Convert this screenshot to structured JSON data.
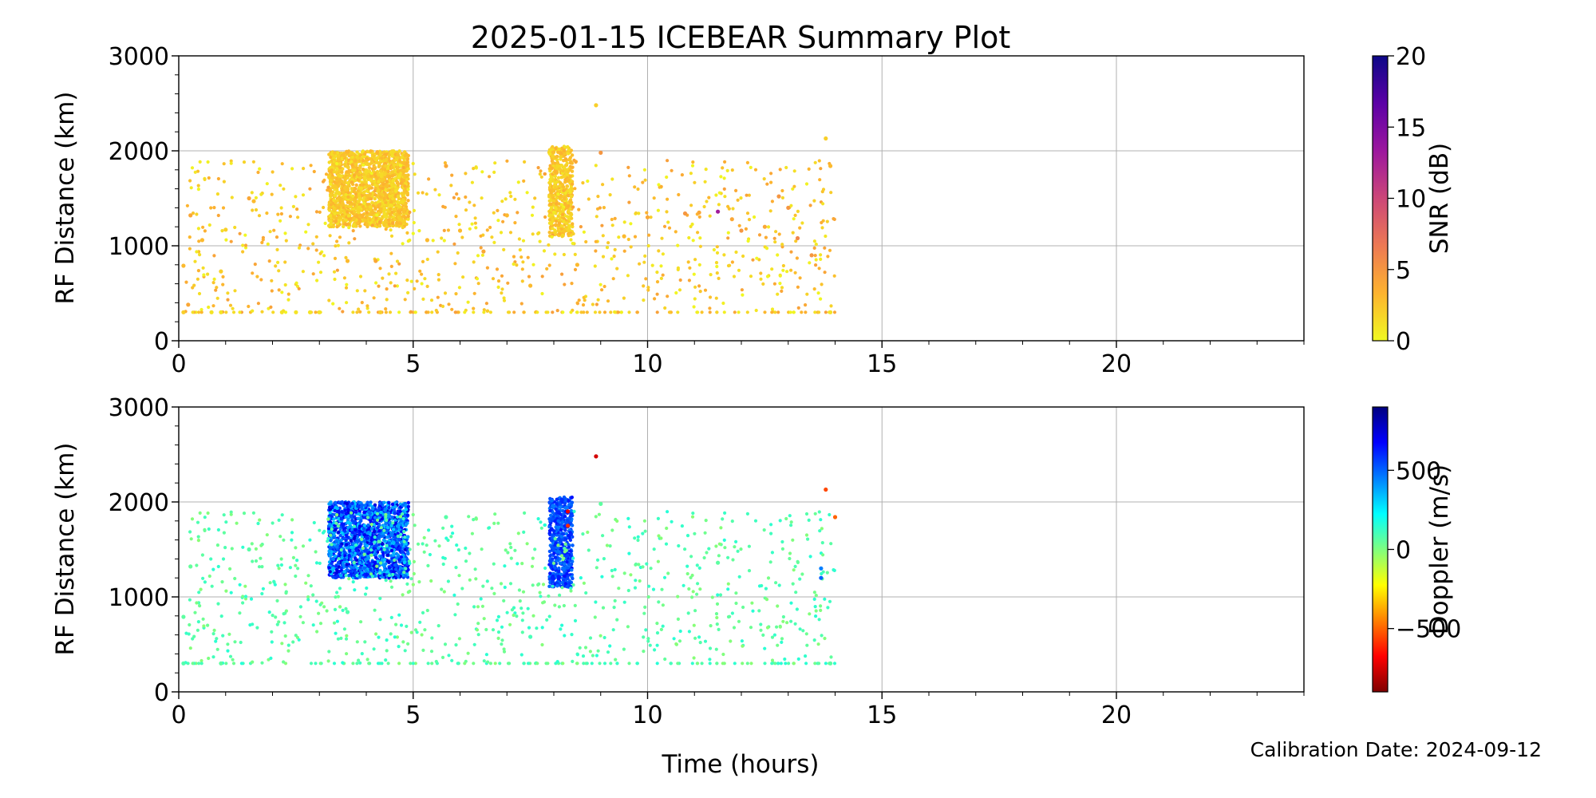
{
  "figure": {
    "title": "2025-01-15 ICEBEAR Summary Plot",
    "xlabel": "Time (hours)",
    "footnote": "Calibration Date: 2024-09-12"
  },
  "chart_data": [
    {
      "type": "scatter",
      "name": "snr-panel",
      "ylabel": "RF Distance (km)",
      "xlim": [
        0,
        24
      ],
      "ylim": [
        0,
        3000
      ],
      "xticks": [
        0,
        5,
        10,
        15,
        20
      ],
      "xtick_labels": [
        "0",
        "5",
        "10",
        "15",
        "20"
      ],
      "yticks": [
        0,
        1000,
        2000,
        3000
      ],
      "ytick_labels": [
        "0",
        "1000",
        "2000",
        "3000"
      ],
      "grid": true,
      "colorbar": {
        "label": "SNR (dB)",
        "range": [
          0,
          20
        ],
        "ticks": [
          0,
          5,
          10,
          15,
          20
        ],
        "tick_labels": [
          "0",
          "5",
          "10",
          "15",
          "20"
        ],
        "colormap": "plasma_r",
        "colors": [
          "#f0f921",
          "#fdb32f",
          "#ed7953",
          "#cc4778",
          "#9c179e",
          "#5c01a6",
          "#0d0887"
        ]
      },
      "clusters": [
        {
          "x": [
            3.2,
            4.9
          ],
          "y": [
            1200,
            2000
          ],
          "snr": [
            1.0,
            3.5
          ]
        },
        {
          "x": [
            7.9,
            8.4
          ],
          "y": [
            1100,
            2050
          ],
          "snr": [
            1.0,
            3.5
          ]
        }
      ],
      "points": [
        [
          0.1,
          300,
          2
        ],
        [
          0.1,
          790,
          3
        ],
        [
          0.2,
          380,
          4
        ],
        [
          0.25,
          1320,
          4
        ],
        [
          0.5,
          1060,
          3
        ],
        [
          0.7,
          300,
          1
        ],
        [
          0.9,
          300,
          1
        ],
        [
          0.9,
          730,
          2
        ],
        [
          1.0,
          1170,
          2
        ],
        [
          1.5,
          1500,
          4
        ],
        [
          1.6,
          1470,
          3
        ],
        [
          2.2,
          300,
          1
        ],
        [
          2.5,
          300,
          1
        ],
        [
          2.8,
          300,
          1
        ],
        [
          3.0,
          300,
          1
        ],
        [
          3.6,
          840,
          3
        ],
        [
          4.2,
          840,
          4
        ],
        [
          4.3,
          300,
          2
        ],
        [
          5.3,
          1060,
          3
        ],
        [
          5.7,
          1840,
          4
        ],
        [
          6.0,
          1160,
          3
        ],
        [
          6.5,
          940,
          4
        ],
        [
          7.0,
          1320,
          3
        ],
        [
          7.5,
          580,
          3
        ],
        [
          8.5,
          800,
          3
        ],
        [
          8.9,
          2480,
          2
        ],
        [
          9.0,
          1980,
          5
        ],
        [
          9.5,
          1100,
          3
        ],
        [
          10.0,
          1300,
          4
        ],
        [
          10.8,
          1340,
          5
        ],
        [
          11.1,
          1350,
          4
        ],
        [
          11.5,
          1360,
          13
        ],
        [
          11.8,
          1280,
          4
        ],
        [
          12.0,
          1160,
          5
        ],
        [
          12.5,
          1200,
          4
        ],
        [
          12.8,
          1520,
          5
        ],
        [
          13.0,
          1400,
          5
        ],
        [
          13.2,
          1080,
          6
        ],
        [
          13.5,
          900,
          5
        ],
        [
          13.8,
          2130,
          2
        ],
        [
          13.9,
          1840,
          3
        ],
        [
          13.9,
          300,
          1
        ]
      ]
    },
    {
      "type": "scatter",
      "name": "doppler-panel",
      "ylabel": "RF Distance (km)",
      "xlim": [
        0,
        24
      ],
      "ylim": [
        0,
        3000
      ],
      "xticks": [
        0,
        5,
        10,
        15,
        20
      ],
      "xtick_labels": [
        "0",
        "5",
        "10",
        "15",
        "20"
      ],
      "yticks": [
        0,
        1000,
        2000,
        3000
      ],
      "ytick_labels": [
        "0",
        "1000",
        "2000",
        "3000"
      ],
      "grid": true,
      "colorbar": {
        "label": "Doppler (m/s)",
        "range": [
          -900,
          900
        ],
        "ticks": [
          -500,
          0,
          500
        ],
        "tick_labels": [
          "−500",
          "0",
          "500"
        ],
        "colormap": "jet_r",
        "colors": [
          "#7f0000",
          "#ff0000",
          "#ff7f00",
          "#ffff00",
          "#7fff7f",
          "#00ffff",
          "#007fff",
          "#0000ff",
          "#00007f"
        ]
      },
      "clusters": [
        {
          "x": [
            3.2,
            4.9
          ],
          "y": [
            1200,
            2000
          ],
          "doppler": [
            300,
            750
          ]
        },
        {
          "x": [
            7.9,
            8.4
          ],
          "y": [
            1100,
            2050
          ],
          "doppler": [
            450,
            650
          ]
        }
      ],
      "points": [
        [
          0.1,
          300,
          80
        ],
        [
          0.1,
          790,
          60
        ],
        [
          0.25,
          1320,
          50
        ],
        [
          0.9,
          300,
          60
        ],
        [
          1.5,
          1500,
          70
        ],
        [
          3.6,
          840,
          80
        ],
        [
          5.7,
          1840,
          70
        ],
        [
          7.5,
          580,
          100
        ],
        [
          8.3,
          1900,
          -700
        ],
        [
          8.3,
          1750,
          -600
        ],
        [
          8.9,
          2480,
          -750
        ],
        [
          9.0,
          1980,
          60
        ],
        [
          11.5,
          1360,
          60
        ],
        [
          13.7,
          1300,
          450
        ],
        [
          13.7,
          1200,
          500
        ],
        [
          13.8,
          2130,
          -550
        ],
        [
          14.0,
          1840,
          -500
        ],
        [
          13.9,
          300,
          60
        ]
      ]
    }
  ]
}
